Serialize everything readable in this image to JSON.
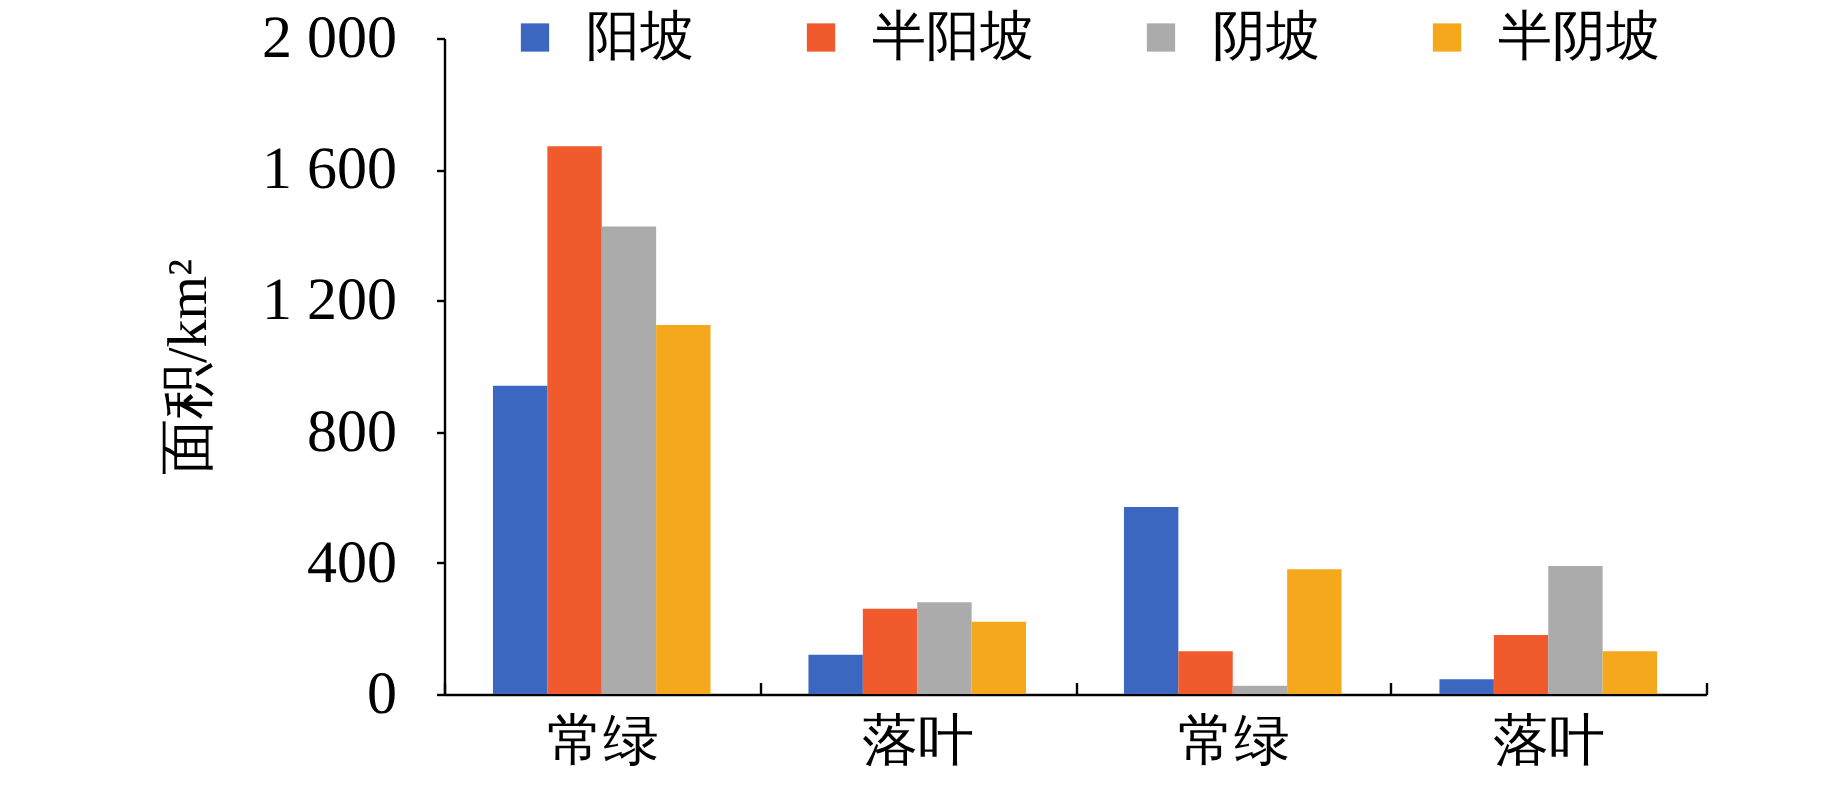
{
  "chart_data": {
    "type": "bar",
    "ylabel": "面积/km²",
    "categories": [
      "常绿",
      "落叶",
      "常绿",
      "落叶"
    ],
    "series": [
      {
        "name": "阳坡",
        "color": "#3b67c0",
        "values": [
          940,
          120,
          570,
          45
        ]
      },
      {
        "name": "半阳坡",
        "color": "#f05a2c",
        "values": [
          1670,
          260,
          130,
          180
        ]
      },
      {
        "name": "阴坡",
        "color": "#ababab",
        "values": [
          1425,
          280,
          25,
          390
        ]
      },
      {
        "name": "半阴坡",
        "color": "#f6a81c",
        "values": [
          1125,
          220,
          380,
          130
        ]
      }
    ],
    "ylim": [
      0,
      2000
    ],
    "yticks": [
      0,
      400,
      800,
      {
        "value": 1200,
        "label": "1 200"
      },
      {
        "value": 1600,
        "label": "1 600"
      },
      {
        "value": 2000,
        "label": "2 000"
      }
    ],
    "grid": false,
    "legend": "top"
  }
}
